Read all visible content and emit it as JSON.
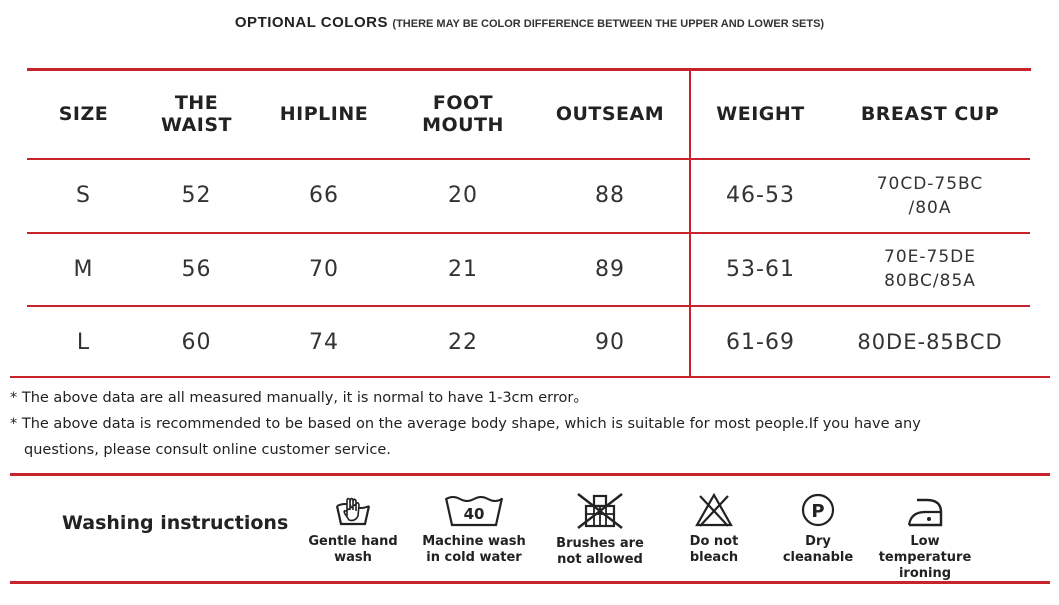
{
  "header": {
    "title": "OPTIONAL COLORS",
    "subtitle": "(THERE MAY BE COLOR DIFFERENCE BETWEEN THE UPPER AND LOWER SETS)"
  },
  "size_table": {
    "columns": [
      "SIZE",
      "THE WAIST",
      "HIPLINE",
      "FOOT MOUTH",
      "OUTSEAM",
      "WEIGHT",
      "BREAST CUP"
    ],
    "rows": [
      {
        "size": "S",
        "waist": "52",
        "hipline": "66",
        "foot_mouth": "20",
        "outseam": "88",
        "weight": "46-53",
        "cup_line1": "70CD-75BC",
        "cup_line2": "/80A"
      },
      {
        "size": "M",
        "waist": "56",
        "hipline": "70",
        "foot_mouth": "21",
        "outseam": "89",
        "weight": "53-61",
        "cup_line1": "70E-75DE",
        "cup_line2": "80BC/85A"
      },
      {
        "size": "L",
        "waist": "60",
        "hipline": "74",
        "foot_mouth": "22",
        "outseam": "90",
        "weight": "61-69",
        "cup_line1": "80DE-85BCD",
        "cup_line2": ""
      }
    ]
  },
  "notes": [
    "* The above data are all measured manually, it is normal to have 1-3cm error。",
    "* The above data is recommended to be based on the average body shape, which is suitable for most people.If you have any",
    "questions, please consult online customer service."
  ],
  "washing": {
    "label": "Washing instructions",
    "items": [
      {
        "icon": "hand-wash-icon",
        "line1": "Gentle hand",
        "line2": "wash"
      },
      {
        "icon": "machine-wash-40-icon",
        "value": "40",
        "line1": "Machine wash",
        "line2": "in cold water"
      },
      {
        "icon": "no-brush-icon",
        "line1": "Brushes are",
        "line2": "not allowed"
      },
      {
        "icon": "do-not-bleach-icon",
        "line1": "Do not",
        "line2": "bleach"
      },
      {
        "icon": "dry-clean-p-icon",
        "letter": "P",
        "line1": "Dry",
        "line2": "cleanable"
      },
      {
        "icon": "low-temp-iron-icon",
        "line1": "Low temperature",
        "line2": "ironing"
      }
    ]
  },
  "colors": {
    "accent_red": "#c8232c",
    "text": "#222222"
  }
}
